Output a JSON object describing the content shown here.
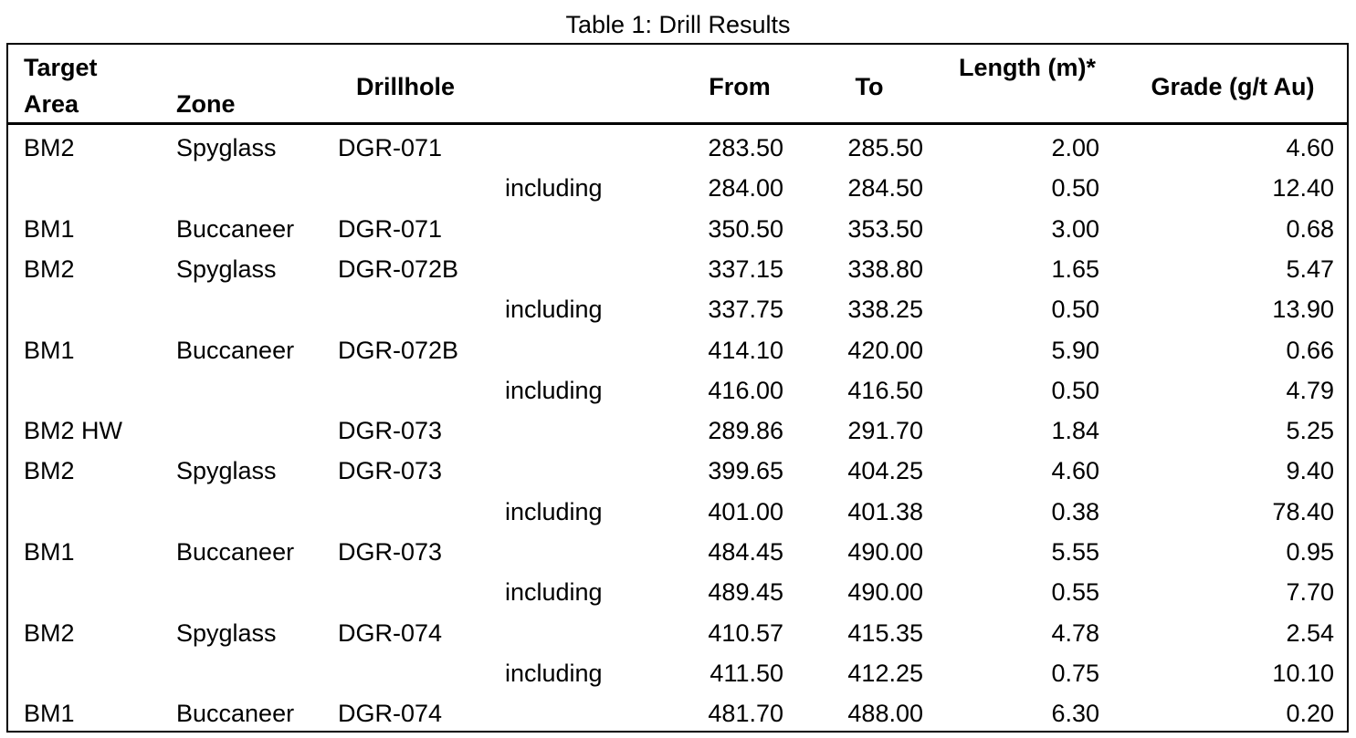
{
  "title": "Table 1: Drill Results",
  "table": {
    "columns": {
      "target_area": "Target Area",
      "zone": "Zone",
      "drillhole": "Drillhole",
      "from": "From",
      "to": "To",
      "length": "Length (m)*",
      "grade": "Grade (g/t Au)"
    },
    "rows": [
      {
        "target_area": "BM2",
        "zone": "Spyglass",
        "drillhole": "DGR-071",
        "from": "283.50",
        "to": "285.50",
        "length": "2.00",
        "grade": "4.60"
      },
      {
        "note": "including",
        "from": "284.00",
        "to": "284.50",
        "length": "0.50",
        "grade": "12.40"
      },
      {
        "target_area": "BM1",
        "zone": "Buccaneer",
        "drillhole": "DGR-071",
        "from": "350.50",
        "to": "353.50",
        "length": "3.00",
        "grade": "0.68"
      },
      {
        "target_area": "BM2",
        "zone": "Spyglass",
        "drillhole": "DGR-072B",
        "from": "337.15",
        "to": "338.80",
        "length": "1.65",
        "grade": "5.47"
      },
      {
        "note": "including",
        "from": "337.75",
        "to": "338.25",
        "length": "0.50",
        "grade": "13.90"
      },
      {
        "target_area": "BM1",
        "zone": "Buccaneer",
        "drillhole": "DGR-072B",
        "from": "414.10",
        "to": "420.00",
        "length": "5.90",
        "grade": "0.66"
      },
      {
        "note": "including",
        "from": "416.00",
        "to": "416.50",
        "length": "0.50",
        "grade": "4.79"
      },
      {
        "target_area": "BM2 HW",
        "drillhole": "DGR-073",
        "from": "289.86",
        "to": "291.70",
        "length": "1.84",
        "grade": "5.25"
      },
      {
        "target_area": "BM2",
        "zone": "Spyglass",
        "drillhole": "DGR-073",
        "from": "399.65",
        "to": "404.25",
        "length": "4.60",
        "grade": "9.40"
      },
      {
        "note": "including",
        "from": "401.00",
        "to": "401.38",
        "length": "0.38",
        "grade": "78.40"
      },
      {
        "target_area": "BM1",
        "zone": "Buccaneer",
        "drillhole": "DGR-073",
        "from": "484.45",
        "to": "490.00",
        "length": "5.55",
        "grade": "0.95"
      },
      {
        "note": "including",
        "from": "489.45",
        "to": "490.00",
        "length": "0.55",
        "grade": "7.70"
      },
      {
        "target_area": "BM2",
        "zone": "Spyglass",
        "drillhole": "DGR-074",
        "from": "410.57",
        "to": "415.35",
        "length": "4.78",
        "grade": "2.54"
      },
      {
        "note": "including",
        "from": "411.50",
        "to": "412.25",
        "length": "0.75",
        "grade": "10.10"
      },
      {
        "target_area": "BM1",
        "zone": "Buccaneer",
        "drillhole": "DGR-074",
        "from": "481.70",
        "to": "488.00",
        "length": "6.30",
        "grade": "0.20"
      }
    ]
  }
}
